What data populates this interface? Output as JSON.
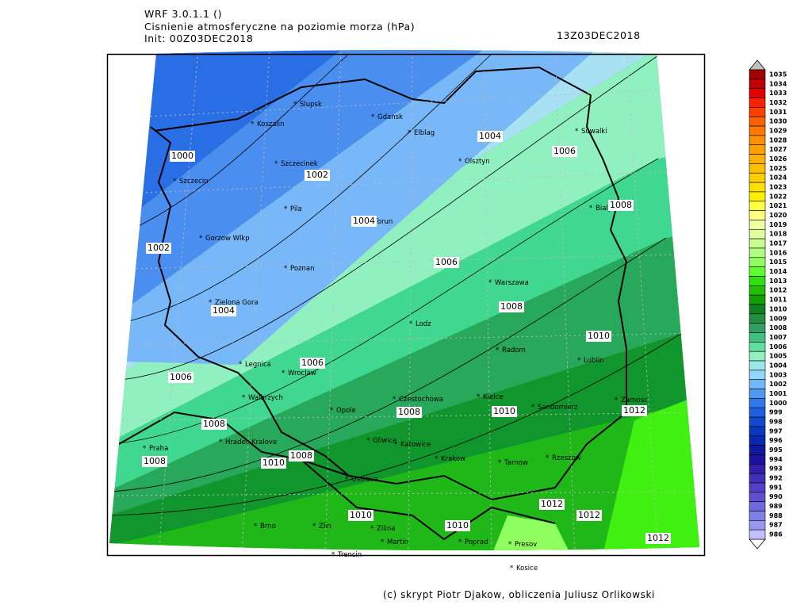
{
  "header": {
    "model": "WRF 3.0.1.1 ()",
    "title": "Cisnienie atmosferyczne na poziomie morza (hPa)",
    "init": "Init: 00Z03DEC2018",
    "valid": "13Z03DEC2018"
  },
  "cities": [
    "Slupsk",
    "Gdansk",
    "Koszalin",
    "Elblag",
    "Olsztyn",
    "Suwalki",
    "Szczecinek",
    "Szczecin",
    "Bialystok",
    "Pila",
    "Torun",
    "Gorzow Wlkp",
    "Poznan",
    "Warszawa",
    "Zielona Gora",
    "Lodz",
    "Radom",
    "Lublin",
    "Legnica",
    "Wroclaw",
    "Czestochowa",
    "Kielce",
    "Zamosc",
    "Walbrzych",
    "Opole",
    "Sandomierz",
    "Praha",
    "Hradec Kralove",
    "Gliwice",
    "Katowice",
    "Krakow",
    "Tarnow",
    "Rzeszow",
    "Ostrava",
    "Brno",
    "Zlin",
    "Zilina",
    "Martin",
    "Poprad",
    "Presov",
    "Trencin",
    "Kosice"
  ],
  "contour_labels": [
    1000,
    1002,
    1004,
    1006,
    1008,
    1004,
    1002,
    1006,
    1008,
    1004,
    1006,
    1010,
    1006,
    1008,
    1010,
    1012,
    1008,
    1008,
    1010,
    1008,
    1010,
    1010,
    1012,
    1012,
    1012
  ],
  "colorbar": {
    "levels": [
      1035,
      1034,
      1033,
      1032,
      1031,
      1030,
      1029,
      1028,
      1027,
      1026,
      1025,
      1024,
      1023,
      1022,
      1021,
      1020,
      1019,
      1018,
      1017,
      1016,
      1015,
      1014,
      1013,
      1012,
      1011,
      1010,
      1009,
      1008,
      1007,
      1006,
      1005,
      1004,
      1003,
      1002,
      1001,
      1000,
      999,
      998,
      997,
      996,
      995,
      994,
      993,
      992,
      991,
      990,
      989,
      988,
      987,
      986
    ],
    "colors": [
      "#a00000",
      "#c00000",
      "#e00000",
      "#ff2000",
      "#ff4000",
      "#ff6000",
      "#ff7800",
      "#ff9000",
      "#ffa000",
      "#ffb000",
      "#ffc000",
      "#ffd000",
      "#ffe000",
      "#fff000",
      "#ffff40",
      "#ffff80",
      "#f0ffa0",
      "#e0ffa0",
      "#c8ff90",
      "#b0ff80",
      "#90ff60",
      "#60ff30",
      "#30e010",
      "#20c000",
      "#10a000",
      "#108020",
      "#209040",
      "#30a060",
      "#40c080",
      "#60e0a0",
      "#90f0c0",
      "#a0e8e8",
      "#90d8f8",
      "#70b8f8",
      "#5098f0",
      "#3078e8",
      "#2060e0",
      "#1048d0",
      "#0838c0",
      "#0828b0",
      "#1018a0",
      "#2010a0",
      "#3020a8",
      "#4030b8",
      "#5040c8",
      "#6050d0",
      "#7068e0",
      "#8080e8",
      "#9898f0",
      "#c0c0ff"
    ]
  },
  "footer": "(c) skrypt Piotr Djakow, obliczenia Juliusz Orlikowski"
}
